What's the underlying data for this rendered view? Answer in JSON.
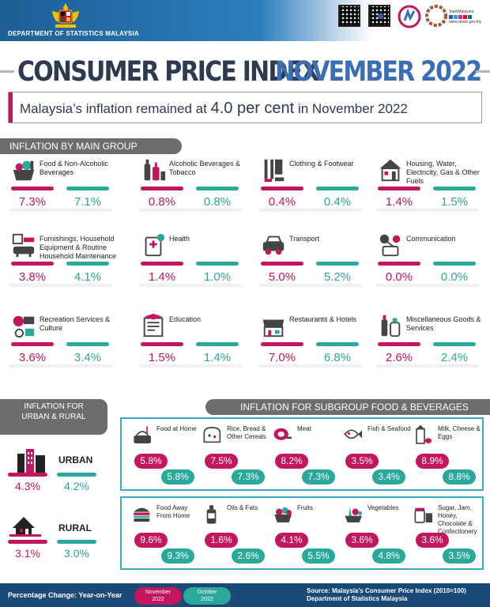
{
  "header": {
    "department": "DEPARTMENT OF STATISTICS MALAYSIA",
    "stats_logo_line1": "StatsMalaysia",
    "stats_logo_line2": "www.dosm.gov.my",
    "title_part1": "CONSUMER PRICE INDEX",
    "title_part2": "NOVEMBER 2022",
    "subtitle_pre": "Malaysia’s inflation remained at ",
    "subtitle_value": "4.0 per cent",
    "subtitle_post": " in November 2022"
  },
  "main_group": {
    "heading": "INFLATION BY MAIN GROUP",
    "items": [
      {
        "label": "Food & Non-Alcoholic Beverages",
        "nov": "7.3%",
        "oct": "7.1%",
        "icon": "food-basket-icon"
      },
      {
        "label": "Alcoholic Beverages & Tobacco",
        "nov": "0.8%",
        "oct": "0.8%",
        "icon": "bottles-icon"
      },
      {
        "label": "Clothing & Footwear",
        "nov": "0.4%",
        "oct": "0.4%",
        "icon": "clothing-icon"
      },
      {
        "label": "Housing, Water, Electricity, Gas & Other Fuels",
        "nov": "1.4%",
        "oct": "1.5%",
        "icon": "house-icon"
      },
      {
        "label": "Furnishings, Household Equipment & Routine Household Maintenance",
        "nov": "3.8%",
        "oct": "4.1%",
        "icon": "furniture-icon"
      },
      {
        "label": "Health",
        "nov": "1.4%",
        "oct": "1.0%",
        "icon": "health-icon"
      },
      {
        "label": "Transport",
        "nov": "5.0%",
        "oct": "5.2%",
        "icon": "car-icon"
      },
      {
        "label": "Communication",
        "nov": "0.0%",
        "oct": "0.0%",
        "icon": "communication-icon"
      },
      {
        "label": "Recreation Services & Culture",
        "nov": "3.6%",
        "oct": "3.4%",
        "icon": "recreation-icon"
      },
      {
        "label": "Education",
        "nov": "1.5%",
        "oct": "1.4%",
        "icon": "education-icon"
      },
      {
        "label": "Restaurants & Hotels",
        "nov": "7.0%",
        "oct": "6.8%",
        "icon": "restaurant-icon"
      },
      {
        "label": "Miscellaneous Goods & Services",
        "nov": "2.6%",
        "oct": "2.4%",
        "icon": "misc-goods-icon"
      }
    ]
  },
  "urban_rural": {
    "heading": "INFLATION FOR URBAN & RURAL",
    "urban": {
      "label": "URBAN",
      "nov": "4.3%",
      "oct": "4.2%"
    },
    "rural": {
      "label": "RURAL",
      "nov": "3.1%",
      "oct": "3.0%"
    }
  },
  "subgroup": {
    "heading": "INFLATION FOR SUBGROUP FOOD & BEVERAGES",
    "row1": [
      {
        "label": "Food at Home",
        "nov": "5.8%",
        "oct": "5.8%",
        "icon": "food-at-home-icon"
      },
      {
        "label": "Rice, Bread & Other Cereals",
        "nov": "7.5%",
        "oct": "7.3%",
        "icon": "bread-icon"
      },
      {
        "label": "Meat",
        "nov": "8.2%",
        "oct": "7.3%",
        "icon": "meat-icon"
      },
      {
        "label": "Fish & Seafood",
        "nov": "3.5%",
        "oct": "3.4%",
        "icon": "fish-icon"
      },
      {
        "label": "Milk, Cheese & Eggs",
        "nov": "8.9%",
        "oct": "8.8%",
        "icon": "milk-icon"
      }
    ],
    "row2": [
      {
        "label": "Food Away From Home",
        "nov": "9.6%",
        "oct": "9.3%",
        "icon": "burger-icon"
      },
      {
        "label": "Oils & Fats",
        "nov": "1.6%",
        "oct": "2.6%",
        "icon": "oil-bottle-icon"
      },
      {
        "label": "Fruits",
        "nov": "4.1%",
        "oct": "5.5%",
        "icon": "fruit-basket-icon"
      },
      {
        "label": "Vegetables",
        "nov": "3.6%",
        "oct": "4.8%",
        "icon": "vegetables-icon"
      },
      {
        "label": "Sugar, Jam, Honey, Chocolate & Confectionery",
        "nov": "3.6%",
        "oct": "3.5%",
        "icon": "sugar-jar-icon"
      }
    ]
  },
  "footer": {
    "pct_label": "Percentage Change: Year-on-Year",
    "legend_nov_line1": "November",
    "legend_nov_line2": "2022",
    "legend_oct_line1": "October",
    "legend_oct_line2": "2022",
    "source_line1": "Source: Malaysia’s Consumer Price Index (2010=100)",
    "source_line2": "Department of Statistics Malaysia"
  },
  "colors": {
    "november": "#c3165e",
    "october": "#2aa899",
    "panel_border": "#3aa9c7",
    "header_blue": "#1c5f96"
  }
}
